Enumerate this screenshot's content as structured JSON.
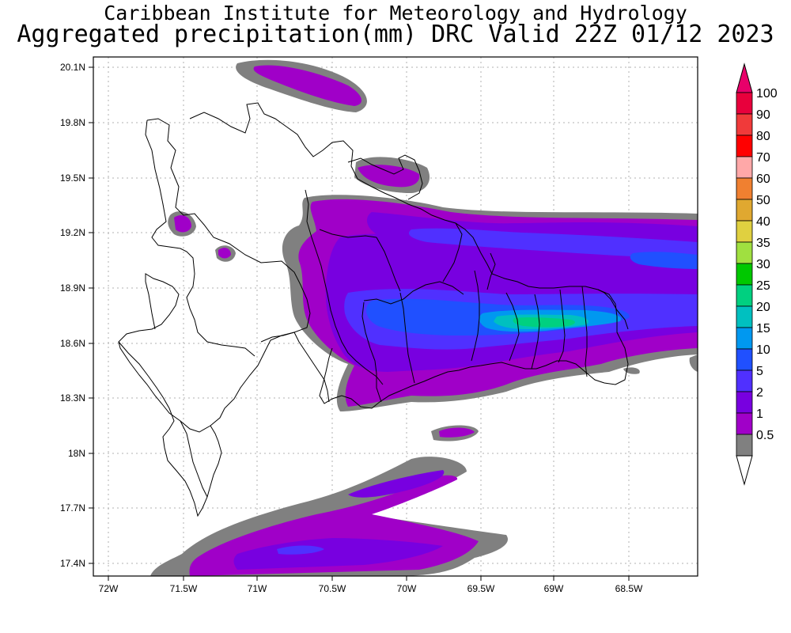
{
  "header": {
    "institute": "Caribbean Institute for Meteorology and Hydrology",
    "product": "Aggregated precipitation(mm) DRC Valid 22Z 01/12 2023"
  },
  "map": {
    "lon_labels": [
      "72W",
      "71.5W",
      "71W",
      "70.5W",
      "70W",
      "69.5W",
      "69W",
      "68.5W"
    ],
    "lat_labels": [
      "20.1N",
      "19.8N",
      "19.5N",
      "19.2N",
      "18.9N",
      "18.6N",
      "18.3N",
      "18N",
      "17.7N",
      "17.4N"
    ]
  },
  "colorbar": {
    "labels": [
      "100",
      "90",
      "80",
      "70",
      "60",
      "50",
      "40",
      "35",
      "30",
      "25",
      "20",
      "15",
      "10",
      "5",
      "2",
      "1",
      "0.5"
    ],
    "colors": [
      "#e8003c",
      "#f03a3a",
      "#ff0000",
      "#ffa8a8",
      "#f08030",
      "#e0a830",
      "#e0d040",
      "#a0e040",
      "#00c800",
      "#00d080",
      "#00c0c0",
      "#0098f0",
      "#2050ff",
      "#5030ff",
      "#7800e0",
      "#a000c8",
      "#808080"
    ],
    "top_color": "#e8006a",
    "bottom_color": "#ffffff"
  }
}
